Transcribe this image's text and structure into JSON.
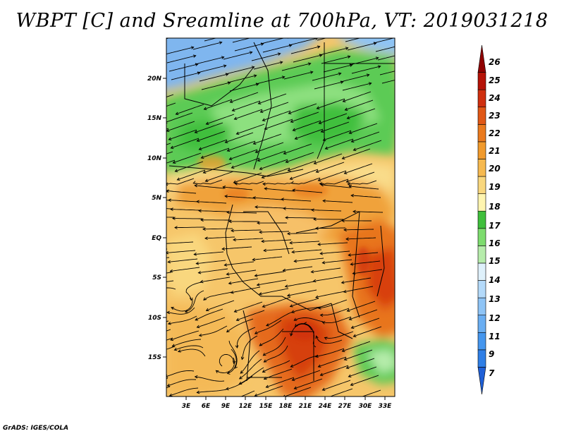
{
  "title": "WBPT [C] and Sreamline at 700hPa, VT: 2019031218",
  "credit": "GrADS: IGES/COLA",
  "map": {
    "lat_labels": [
      "20N",
      "15N",
      "10N",
      "5N",
      "EQ",
      "5S",
      "10S",
      "15S"
    ],
    "lon_labels": [
      "3E",
      "6E",
      "9E",
      "12E",
      "15E",
      "18E",
      "21E",
      "24E",
      "27E",
      "30E",
      "33E"
    ]
  },
  "colorbar": {
    "labels": [
      "7",
      "9",
      "11",
      "12",
      "13",
      "14",
      "15",
      "16",
      "17",
      "18",
      "19",
      "20",
      "21",
      "22",
      "23",
      "24",
      "25",
      "26"
    ],
    "colors": [
      "#1f5fd6",
      "#2f7fe6",
      "#4596ee",
      "#6aaef2",
      "#8ec4f6",
      "#b4dafa",
      "#dff1fb",
      "#b6ecab",
      "#7ddc6e",
      "#3fbf3c",
      "#fff5b0",
      "#f9d77e",
      "#f6b94f",
      "#f19a2c",
      "#ea7a1e",
      "#e05716",
      "#cf2f0f",
      "#b51207",
      "#8f0000"
    ]
  },
  "colors": {
    "ocean_cool": "#9ccaf4",
    "green_band": "#5ccb55",
    "warm": "#f3b04f",
    "hot": "#e56a1c"
  }
}
